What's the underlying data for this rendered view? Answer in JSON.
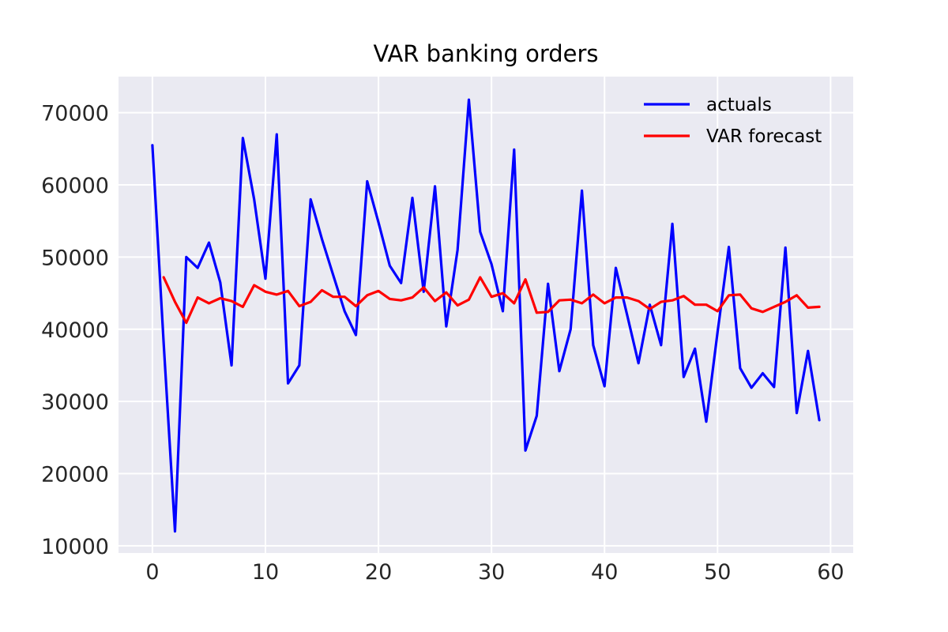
{
  "chart_data": {
    "type": "line",
    "title": "VAR banking orders",
    "xlabel": "",
    "ylabel": "",
    "xlim": [
      -3,
      62
    ],
    "ylim": [
      9000,
      75000
    ],
    "xticks": [
      0,
      10,
      20,
      30,
      40,
      50,
      60
    ],
    "yticks": [
      10000,
      20000,
      30000,
      40000,
      50000,
      60000,
      70000
    ],
    "grid": true,
    "legend_position": "top-right",
    "series": [
      {
        "name": "actuals",
        "color": "#0000ff",
        "x": [
          0,
          1,
          2,
          3,
          4,
          5,
          6,
          7,
          8,
          9,
          10,
          11,
          12,
          13,
          14,
          15,
          16,
          17,
          18,
          19,
          20,
          21,
          22,
          23,
          24,
          25,
          26,
          27,
          28,
          29,
          30,
          31,
          32,
          33,
          34,
          35,
          36,
          37,
          38,
          39,
          40,
          41,
          42,
          43,
          44,
          45,
          46,
          47,
          48,
          49,
          50,
          51,
          52,
          53,
          54,
          55,
          56,
          57,
          58,
          59
        ],
        "values": [
          65500,
          38000,
          12000,
          50000,
          48500,
          52000,
          46500,
          35000,
          66500,
          58000,
          47000,
          67000,
          32500,
          35000,
          58000,
          52500,
          47500,
          42500,
          39200,
          60500,
          54800,
          48800,
          46400,
          58200,
          45200,
          59800,
          40400,
          51000,
          71800,
          53500,
          49000,
          42500,
          64900,
          23200,
          28000,
          46300,
          34200,
          40000,
          59200,
          37800,
          32100,
          48500,
          42000,
          35300,
          43400,
          37800,
          54600,
          33400,
          37300,
          27200,
          39600,
          51400,
          34600,
          31900,
          33900,
          32000,
          51300,
          28400,
          37000,
          27400
        ]
      },
      {
        "name": "VAR forecast",
        "color": "#ff0000",
        "x": [
          1,
          2,
          3,
          4,
          5,
          6,
          7,
          8,
          9,
          10,
          11,
          12,
          13,
          14,
          15,
          16,
          17,
          18,
          19,
          20,
          21,
          22,
          23,
          24,
          25,
          26,
          27,
          28,
          29,
          30,
          31,
          32,
          33,
          34,
          35,
          36,
          37,
          38,
          39,
          40,
          41,
          42,
          43,
          44,
          45,
          46,
          47,
          48,
          49,
          50,
          51,
          52,
          53,
          54,
          55,
          56,
          57,
          58,
          59
        ],
        "values": [
          47200,
          43800,
          40900,
          44400,
          43600,
          44300,
          43900,
          43100,
          46100,
          45200,
          44800,
          45300,
          43200,
          43800,
          45400,
          44500,
          44500,
          43200,
          44700,
          45300,
          44200,
          44000,
          44400,
          45800,
          43900,
          45100,
          43300,
          44100,
          47200,
          44500,
          45000,
          43600,
          46900,
          42300,
          42400,
          44000,
          44100,
          43600,
          44800,
          43600,
          44400,
          44400,
          43900,
          42800,
          43800,
          44000,
          44600,
          43400,
          43400,
          42500,
          44700,
          44800,
          42900,
          42400,
          43100,
          43800,
          44700,
          43000,
          43100
        ]
      }
    ]
  }
}
